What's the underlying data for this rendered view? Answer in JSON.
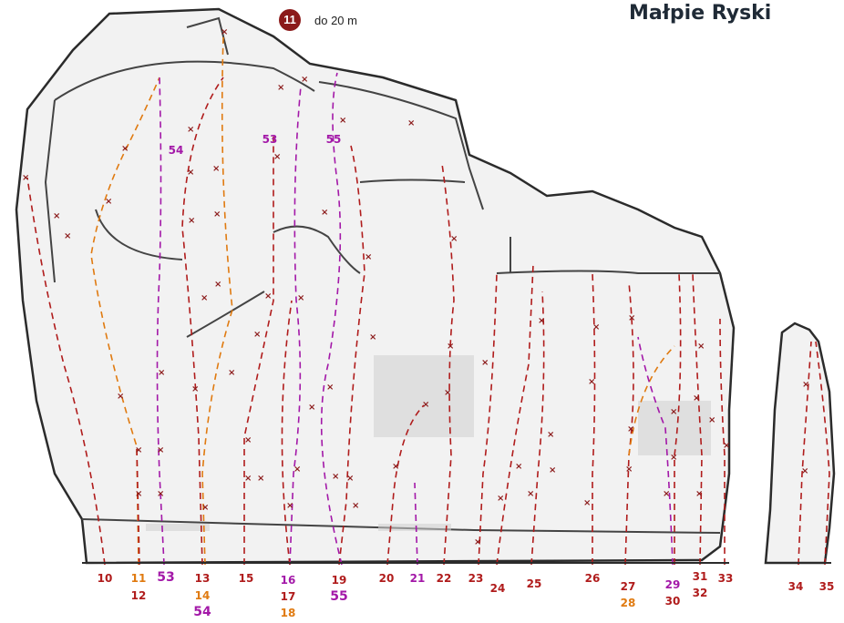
{
  "header": {
    "title": "Małpie Ryski",
    "sector_number": "11",
    "height_text": "do 20 m"
  },
  "colors": {
    "red": "#b01c1c",
    "orange": "#e07a10",
    "purple": "#a318a8",
    "rock_line": "#2b2b2b"
  },
  "route_labels": [
    {
      "text": "10",
      "color": "red"
    },
    {
      "text": "11",
      "color": "orange"
    },
    {
      "text": "12",
      "color": "red"
    },
    {
      "text": "53",
      "color": "purple"
    },
    {
      "text": "13",
      "color": "red"
    },
    {
      "text": "14",
      "color": "orange"
    },
    {
      "text": "54",
      "color": "purple"
    },
    {
      "text": "15",
      "color": "red"
    },
    {
      "text": "16",
      "color": "purple"
    },
    {
      "text": "17",
      "color": "red"
    },
    {
      "text": "18",
      "color": "orange"
    },
    {
      "text": "19",
      "color": "red"
    },
    {
      "text": "55",
      "color": "purple"
    },
    {
      "text": "20",
      "color": "red"
    },
    {
      "text": "21",
      "color": "purple"
    },
    {
      "text": "22",
      "color": "red"
    },
    {
      "text": "23",
      "color": "red"
    },
    {
      "text": "24",
      "color": "red"
    },
    {
      "text": "25",
      "color": "red"
    },
    {
      "text": "26",
      "color": "red"
    },
    {
      "text": "27",
      "color": "red"
    },
    {
      "text": "28",
      "color": "orange"
    },
    {
      "text": "29",
      "color": "purple"
    },
    {
      "text": "30",
      "color": "red"
    },
    {
      "text": "31",
      "color": "red"
    },
    {
      "text": "32",
      "color": "red"
    },
    {
      "text": "33",
      "color": "red"
    },
    {
      "text": "34",
      "color": "red"
    },
    {
      "text": "35",
      "color": "red"
    }
  ],
  "in_image_labels": [
    {
      "text": "54",
      "color": "purple"
    },
    {
      "text": "53",
      "color": "purple"
    },
    {
      "text": "55",
      "color": "purple"
    }
  ]
}
